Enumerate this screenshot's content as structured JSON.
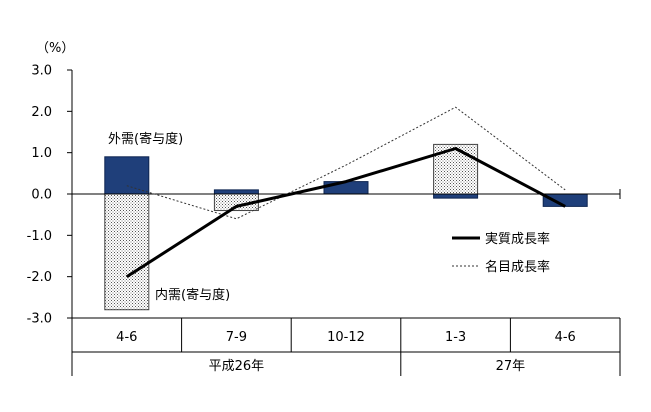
{
  "chart_data": {
    "type": "bar",
    "unit_label": "（%）",
    "ylim": [
      -3.0,
      3.0
    ],
    "yticks": [
      "3.0",
      "2.0",
      "1.0",
      "0.0",
      "-1.0",
      "-2.0",
      "-3.0"
    ],
    "ytick_values": [
      3,
      2,
      1,
      0,
      -1,
      -2,
      -3
    ],
    "categories": [
      "4-6",
      "7-9",
      "10-12",
      "1-3",
      "4-6"
    ],
    "year_groups": [
      {
        "label": "平成26年",
        "start": 0,
        "end": 2
      },
      {
        "label": "27年",
        "start": 3,
        "end": 4
      }
    ],
    "series": [
      {
        "name": "外需(寄与度)",
        "kind": "bar",
        "color": "#1f3f7a",
        "values": [
          0.9,
          0.1,
          0.3,
          -0.1,
          -0.3
        ]
      },
      {
        "name": "内需(寄与度)",
        "kind": "bar",
        "pattern": "dots",
        "values": [
          -2.8,
          -0.4,
          0.0,
          1.2,
          0.0
        ]
      },
      {
        "name": "実質成長率",
        "kind": "line",
        "style": "solid",
        "values": [
          -2.0,
          -0.3,
          0.3,
          1.1,
          -0.3
        ]
      },
      {
        "name": "名目成長率",
        "kind": "line",
        "style": "dotted",
        "values": [
          0.2,
          -0.6,
          0.7,
          2.1,
          0.1
        ]
      }
    ],
    "legend_position": "right",
    "grid": false
  }
}
